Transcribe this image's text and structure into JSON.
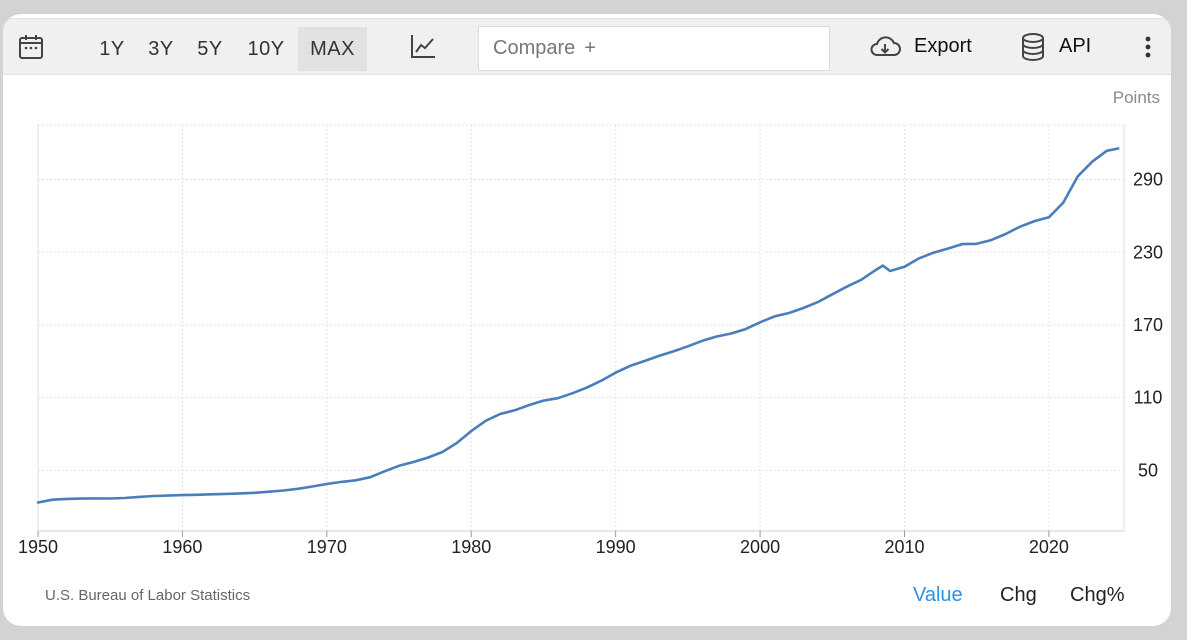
{
  "toolbar": {
    "ranges": [
      "1Y",
      "3Y",
      "5Y",
      "10Y",
      "MAX"
    ],
    "active_range": "MAX",
    "compare_placeholder": "Compare",
    "compare_plus": "+",
    "export_label": "Export",
    "api_label": "API"
  },
  "chart_data": {
    "type": "line",
    "title": "",
    "xlabel": "",
    "ylabel": "Points",
    "xlim": [
      1950,
      2025.2
    ],
    "ylim": [
      0,
      335
    ],
    "x_ticks": [
      1950,
      1960,
      1970,
      1980,
      1990,
      2000,
      2010,
      2020
    ],
    "y_ticks": [
      50,
      110,
      170,
      230,
      290
    ],
    "grid": true,
    "series": [
      {
        "color": "#4a7ebb",
        "x": [
          1950,
          1951,
          1952,
          1953,
          1954,
          1955,
          1956,
          1957,
          1958,
          1959,
          1960,
          1961,
          1962,
          1963,
          1964,
          1965,
          1966,
          1967,
          1968,
          1969,
          1970,
          1971,
          1972,
          1973,
          1974,
          1975,
          1976,
          1977,
          1978,
          1979,
          1980,
          1981,
          1982,
          1983,
          1984,
          1985,
          1986,
          1987,
          1988,
          1989,
          1990,
          1991,
          1992,
          1993,
          1994,
          1995,
          1996,
          1997,
          1998,
          1999,
          2000,
          2001,
          2002,
          2003,
          2004,
          2005,
          2006,
          2007,
          2008,
          2008.5,
          2009,
          2010,
          2011,
          2012,
          2013,
          2014,
          2015,
          2016,
          2017,
          2018,
          2019,
          2020,
          2021,
          2022,
          2023,
          2024,
          2024.8
        ],
        "y": [
          23.5,
          25.8,
          26.5,
          26.7,
          26.9,
          26.8,
          27.2,
          28.1,
          28.9,
          29.2,
          29.6,
          29.9,
          30.3,
          30.6,
          31.0,
          31.5,
          32.4,
          33.4,
          34.8,
          36.7,
          38.8,
          40.5,
          41.8,
          44.4,
          49.3,
          53.8,
          56.9,
          60.6,
          65.2,
          72.6,
          82.4,
          90.9,
          96.5,
          99.6,
          103.9,
          107.6,
          109.6,
          113.6,
          118.3,
          124.0,
          130.7,
          136.2,
          140.3,
          144.5,
          148.2,
          152.4,
          156.9,
          160.5,
          163.0,
          166.6,
          172.2,
          177.1,
          179.9,
          184.0,
          188.9,
          195.3,
          201.6,
          207.3,
          215.3,
          219.0,
          214.5,
          218.1,
          224.9,
          229.6,
          233.0,
          236.7,
          237.0,
          240.0,
          245.1,
          251.1,
          255.7,
          258.8,
          271.0,
          292.7,
          304.7,
          313.7,
          315.6
        ]
      }
    ]
  },
  "footer": {
    "source": "U.S. Bureau of Labor Statistics",
    "tabs": [
      "Value",
      "Chg",
      "Chg%"
    ],
    "active_tab": "Value"
  }
}
